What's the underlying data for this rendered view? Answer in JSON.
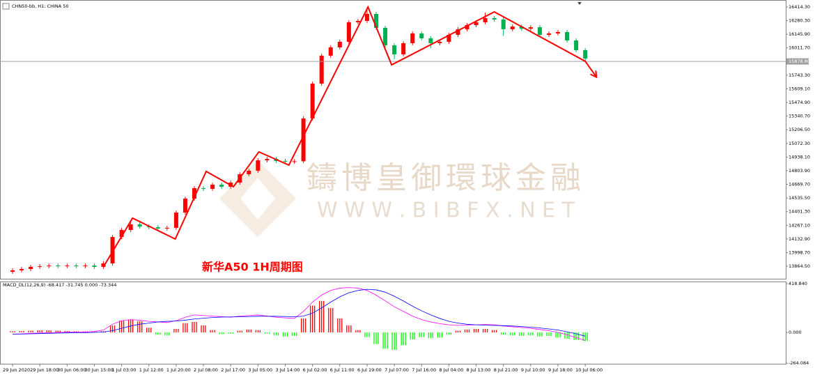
{
  "chart_data": [
    {
      "type": "candlestick",
      "title": "CHN50-bb, H1:  CHINA 50",
      "annotation": "新华A50 1H周期图",
      "watermark": [
        "鑄博皇御環球金融",
        "W W W . B I B F X . N E T"
      ],
      "categories": [
        "29 Jun 2020",
        null,
        null,
        "29 Jun 18:00",
        null,
        null,
        "30 Jun 06:00",
        null,
        null,
        "30 Jun 15:00",
        null,
        null,
        "1 Jul 03:00",
        null,
        null,
        "1 Jul 12:00",
        null,
        null,
        "1 Jul 20:00",
        null,
        null,
        "2 Jul 08:00",
        null,
        null,
        "2 Jul 17:00",
        null,
        null,
        "3 Jul 05:00",
        null,
        null,
        "3 Jul 14:00",
        null,
        null,
        "6 Jul 02:00",
        null,
        null,
        "6 Jul 11:00",
        null,
        null,
        "6 Jul 19:00",
        null,
        null,
        "7 Jul 07:00",
        null,
        null,
        "7 Jul 16:00",
        null,
        null,
        "8 Jul 04:00",
        null,
        null,
        "8 Jul 13:00",
        null,
        null,
        "8 Jul 21:00",
        null,
        null,
        "9 Jul 10:00",
        null,
        null,
        "9 Jul 18:00",
        null,
        null,
        "10 Jul 06:00"
      ],
      "open": [
        13810,
        13824,
        13837,
        13858,
        13865,
        13871,
        13865,
        13871,
        13865,
        13871,
        13858,
        13892,
        14152,
        14221,
        14276,
        14255,
        14248,
        14235,
        14242,
        14392,
        14529,
        14632,
        14625,
        14667,
        14646,
        14687,
        14769,
        14804,
        14906,
        14920,
        14900,
        14893,
        14897,
        15318,
        15660,
        15935,
        16017,
        16072,
        16264,
        16277,
        16346,
        16209,
        16037,
        15948,
        16058,
        16154,
        16106,
        16058,
        16072,
        16140,
        16195,
        16236,
        16264,
        16305,
        16291,
        16195,
        16222,
        16200,
        16215,
        16140,
        16154,
        16168,
        16085,
        15989
      ],
      "high": [
        13844,
        13857,
        13878,
        13885,
        13891,
        13891,
        13891,
        13891,
        13891,
        13891,
        13912,
        14172,
        14241,
        14296,
        14296,
        14275,
        14268,
        14262,
        14412,
        14549,
        14652,
        14652,
        14687,
        14687,
        14707,
        14789,
        14824,
        14926,
        14940,
        14940,
        14920,
        14917,
        15338,
        15680,
        15955,
        16037,
        16092,
        16284,
        16297,
        16410,
        16366,
        16229,
        16057,
        16078,
        16174,
        16174,
        16126,
        16092,
        16160,
        16215,
        16256,
        16284,
        16360,
        16325,
        16311,
        16242,
        16242,
        16235,
        16235,
        16174,
        16188,
        16188,
        16105,
        16009
      ],
      "low": [
        13790,
        13804,
        13817,
        13838,
        13845,
        13845,
        13845,
        13845,
        13845,
        13838,
        13838,
        13872,
        14132,
        14201,
        14235,
        14228,
        14215,
        14215,
        14222,
        14372,
        14509,
        14605,
        14605,
        14626,
        14626,
        14667,
        14749,
        14784,
        14886,
        14880,
        14873,
        14873,
        14877,
        15298,
        15640,
        15915,
        15997,
        16052,
        16244,
        16257,
        16189,
        16017,
        15900,
        15928,
        16038,
        16086,
        16010,
        16038,
        16052,
        16120,
        16175,
        16216,
        16244,
        16271,
        16130,
        16175,
        16180,
        16180,
        16120,
        16120,
        16134,
        16065,
        15969,
        15887
      ],
      "close": [
        13824,
        13837,
        13858,
        13865,
        13871,
        13865,
        13871,
        13865,
        13871,
        13858,
        13892,
        14152,
        14221,
        14276,
        14255,
        14248,
        14235,
        14242,
        14392,
        14529,
        14632,
        14625,
        14667,
        14646,
        14687,
        14769,
        14804,
        14906,
        14920,
        14900,
        14893,
        14897,
        15318,
        15660,
        15935,
        16017,
        16072,
        16264,
        16277,
        16346,
        16209,
        16037,
        15948,
        16058,
        16154,
        16106,
        16058,
        16072,
        16140,
        16195,
        16236,
        16264,
        16305,
        16291,
        16195,
        16222,
        16200,
        16215,
        16140,
        16154,
        16168,
        16085,
        15989,
        15907
      ],
      "up_color": "#ff0000",
      "down_color": "#00b050",
      "current_price": {
        "value": 15878.8,
        "label": "15878.80"
      },
      "trend_line": {
        "color": "#ff0000",
        "x": [
          10,
          13.2,
          17.9,
          21.3,
          24.3,
          27.1,
          30.4,
          39.1,
          41.7,
          53,
          63,
          64.2
        ],
        "values": [
          13858,
          14338,
          14132,
          14797,
          14646,
          14989,
          14859,
          16414,
          15845,
          16366,
          15880,
          15729
        ]
      },
      "ylim": [
        13741.2,
        16482.8
      ],
      "yticks": [
        {
          "value": 16414.3,
          "label": "16414.30"
        },
        {
          "value": 16280.3,
          "label": "16280.30"
        },
        {
          "value": 16145.9,
          "label": "16145.90"
        },
        {
          "value": 16011.7,
          "label": "16011.70"
        },
        {
          "value": 15743.3,
          "label": "15743.30"
        },
        {
          "value": 15609.1,
          "label": "15609.10"
        },
        {
          "value": 15474.9,
          "label": "15474.90"
        },
        {
          "value": 15340.7,
          "label": "15340.70"
        },
        {
          "value": 15206.5,
          "label": "15206.50"
        },
        {
          "value": 15072.3,
          "label": "15072.30"
        },
        {
          "value": 14938.1,
          "label": "14938.10"
        },
        {
          "value": 14803.9,
          "label": "14803.90"
        },
        {
          "value": 14669.7,
          "label": "14669.70"
        },
        {
          "value": 14535.5,
          "label": "14535.50"
        },
        {
          "value": 14401.3,
          "label": "14401.30"
        },
        {
          "value": 14267.1,
          "label": "14267.10"
        },
        {
          "value": 14132.9,
          "label": "14132.90"
        },
        {
          "value": 13998.7,
          "label": "13998.70"
        },
        {
          "value": 13864.5,
          "label": "13864.50"
        }
      ]
    },
    {
      "type": "macd",
      "title": "MACD_DL(12,26,9) -68.417 -31.745 0.000 -73.344",
      "histogram": {
        "up_color": "#ff0000",
        "down_color": "#00ff00",
        "values": [
          10,
          12,
          15,
          18,
          18,
          15,
          12,
          10,
          8,
          5,
          10,
          60,
          100,
          110,
          95,
          40,
          -20,
          -25,
          30,
          80,
          90,
          60,
          20,
          -15,
          -10,
          15,
          25,
          20,
          -10,
          -25,
          -35,
          -30,
          120,
          230,
          270,
          210,
          120,
          60,
          20,
          -40,
          -100,
          -140,
          -150,
          -110,
          -60,
          -40,
          -50,
          -45,
          -20,
          15,
          25,
          30,
          30,
          20,
          -20,
          -25,
          -30,
          -25,
          -35,
          -30,
          -45,
          -55,
          -65,
          -73.344
        ]
      },
      "macd": {
        "color": "#ff00ff",
        "values": [
          -15,
          -12,
          -8,
          -5,
          -3,
          0,
          2,
          3,
          5,
          8,
          20,
          70,
          100,
          110,
          105,
          95,
          90,
          85,
          100,
          130,
          150,
          145,
          140,
          135,
          130,
          140,
          145,
          150,
          140,
          130,
          125,
          120,
          180,
          260,
          320,
          360,
          380,
          385,
          380,
          360,
          320,
          270,
          220,
          180,
          140,
          110,
          90,
          75,
          65,
          60,
          62,
          65,
          68,
          66,
          55,
          48,
          42,
          35,
          25,
          15,
          0,
          -20,
          -45,
          -68.417
        ]
      },
      "signal": {
        "color": "#0000ff",
        "values": [
          -15,
          -14,
          -12,
          -10,
          -8,
          -6,
          -4,
          -3,
          -2,
          0,
          3,
          15,
          35,
          55,
          70,
          80,
          90,
          95,
          98,
          105,
          115,
          122,
          128,
          132,
          133,
          134,
          136,
          138,
          139,
          138,
          136,
          134,
          140,
          165,
          210,
          260,
          305,
          340,
          360,
          370,
          365,
          345,
          310,
          270,
          225,
          185,
          150,
          120,
          95,
          80,
          70,
          65,
          62,
          60,
          58,
          55,
          50,
          45,
          38,
          30,
          20,
          5,
          -12,
          -31.745
        ]
      },
      "ylim": [
        -275,
        436.5
      ],
      "yticks": [
        {
          "value": 418.84,
          "label": "418.840"
        },
        {
          "value": 0,
          "label": "0.000"
        },
        {
          "value": -264.084,
          "label": "-264.084"
        }
      ]
    }
  ]
}
